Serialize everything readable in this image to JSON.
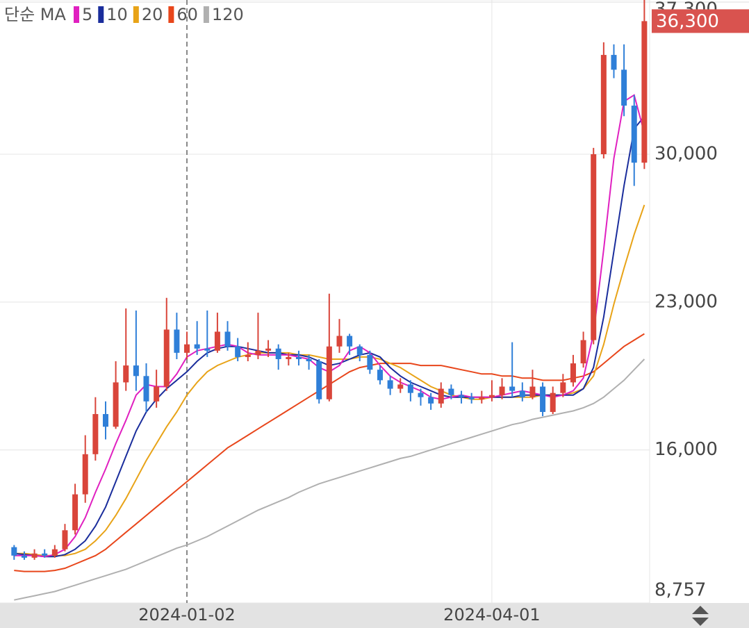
{
  "chart_data": {
    "type": "candlestick",
    "legend_title": "단순 MA",
    "categories": [
      null,
      null,
      null,
      null,
      null,
      null,
      null,
      null,
      null,
      null,
      null,
      null,
      null,
      null,
      null,
      null,
      null,
      "2024-01-02",
      null,
      null,
      null,
      null,
      null,
      null,
      null,
      null,
      null,
      null,
      null,
      null,
      null,
      null,
      null,
      null,
      null,
      null,
      null,
      null,
      null,
      null,
      null,
      null,
      null,
      null,
      null,
      null,
      null,
      "2024-04-01",
      null,
      null,
      null,
      null,
      null,
      null,
      null,
      null,
      null,
      null,
      null,
      null,
      null,
      null,
      null
    ],
    "crosshair": "2024-01-02",
    "up_color": "#d9453a",
    "down_color": "#2f7fd8",
    "candles": [
      [
        11400,
        11500,
        10800,
        11000
      ],
      [
        11000,
        11200,
        10800,
        10900
      ],
      [
        10900,
        11300,
        10800,
        11100
      ],
      [
        11100,
        11300,
        10900,
        11000
      ],
      [
        11000,
        11500,
        10900,
        11300
      ],
      [
        11300,
        12500,
        11200,
        12200
      ],
      [
        12200,
        14400,
        12000,
        13900
      ],
      [
        13900,
        16700,
        13500,
        15800
      ],
      [
        15800,
        18500,
        15500,
        17700
      ],
      [
        17700,
        18300,
        16500,
        17100
      ],
      [
        17100,
        20200,
        17000,
        19200
      ],
      [
        19200,
        22700,
        18800,
        20000
      ],
      [
        20000,
        22600,
        18800,
        19500
      ],
      [
        19500,
        20100,
        17800,
        18300
      ],
      [
        18300,
        19800,
        18000,
        19000
      ],
      [
        19000,
        23200,
        18800,
        21700
      ],
      [
        21700,
        22500,
        20300,
        20600
      ],
      [
        20600,
        21600,
        20300,
        21000
      ],
      [
        21000,
        22100,
        20500,
        20800
      ],
      [
        20800,
        22600,
        20400,
        20700
      ],
      [
        20700,
        22500,
        20600,
        21600
      ],
      [
        21600,
        22100,
        20700,
        20900
      ],
      [
        20900,
        21300,
        20200,
        20400
      ],
      [
        20400,
        21100,
        20200,
        20500
      ],
      [
        20500,
        22500,
        20300,
        20700
      ],
      [
        20700,
        21200,
        20400,
        20800
      ],
      [
        20800,
        21000,
        19800,
        20300
      ],
      [
        20300,
        20600,
        20000,
        20400
      ],
      [
        20400,
        20700,
        20000,
        20300
      ],
      [
        20300,
        20500,
        19800,
        20200
      ],
      [
        20200,
        20300,
        18200,
        18400
      ],
      [
        18400,
        23400,
        18300,
        20900
      ],
      [
        20900,
        22200,
        20600,
        21400
      ],
      [
        21400,
        21500,
        20500,
        20900
      ],
      [
        20900,
        21000,
        20200,
        20500
      ],
      [
        20500,
        20700,
        19600,
        19800
      ],
      [
        19800,
        20000,
        19100,
        19300
      ],
      [
        19300,
        19500,
        18600,
        18900
      ],
      [
        18900,
        19400,
        18700,
        19100
      ],
      [
        19100,
        19300,
        18300,
        18700
      ],
      [
        18700,
        18900,
        18100,
        18500
      ],
      [
        18500,
        18700,
        17900,
        18200
      ],
      [
        18200,
        19200,
        18000,
        18900
      ],
      [
        18900,
        19100,
        18400,
        18600
      ],
      [
        18600,
        18800,
        18200,
        18500
      ],
      [
        18500,
        18700,
        18200,
        18400
      ],
      [
        18400,
        18800,
        18200,
        18500
      ],
      [
        18500,
        19300,
        18300,
        18600
      ],
      [
        18600,
        19400,
        18400,
        19000
      ],
      [
        19000,
        21100,
        18500,
        18800
      ],
      [
        18800,
        19200,
        18300,
        18500
      ],
      [
        18500,
        19800,
        18400,
        19000
      ],
      [
        19000,
        19200,
        17600,
        17800
      ],
      [
        17800,
        19000,
        17700,
        18700
      ],
      [
        18700,
        19600,
        18500,
        19200
      ],
      [
        19200,
        20500,
        19000,
        20100
      ],
      [
        20100,
        21600,
        19900,
        21200
      ],
      [
        21200,
        30300,
        21000,
        30000
      ],
      [
        30000,
        35300,
        29800,
        34700
      ],
      [
        34700,
        35200,
        33600,
        34000
      ],
      [
        34000,
        35200,
        31800,
        32300
      ],
      [
        32300,
        32800,
        28500,
        29600
      ],
      [
        29600,
        37300,
        29300,
        36300
      ]
    ],
    "series": [
      {
        "name": "5",
        "color": "#e020c0",
        "values": [
          11000,
          11000,
          11000,
          10950,
          11050,
          11300,
          11900,
          12800,
          14000,
          15100,
          16300,
          17400,
          18600,
          19100,
          19000,
          19000,
          19600,
          20400,
          20700,
          20800,
          20900,
          21000,
          20900,
          20600,
          20500,
          20500,
          20500,
          20500,
          20400,
          20300,
          19900,
          19700,
          20000,
          20700,
          20900,
          20600,
          20000,
          19500,
          19200,
          19000,
          18800,
          18500,
          18400,
          18500,
          18600,
          18500,
          18500,
          18500,
          18600,
          18700,
          18800,
          18700,
          18600,
          18500,
          18600,
          18800,
          19400,
          21500,
          25500,
          29800,
          32500,
          32800,
          31000
        ]
      },
      {
        "name": "10",
        "color": "#1a2d9c",
        "values": [
          11100,
          11050,
          11000,
          10950,
          10950,
          11050,
          11300,
          11700,
          12400,
          13300,
          14500,
          15700,
          16900,
          17800,
          18400,
          18900,
          19300,
          19700,
          20200,
          20600,
          20800,
          20900,
          20900,
          20800,
          20700,
          20600,
          20600,
          20500,
          20500,
          20400,
          20200,
          20000,
          20100,
          20300,
          20500,
          20600,
          20400,
          19900,
          19500,
          19200,
          19000,
          18800,
          18600,
          18500,
          18500,
          18500,
          18500,
          18500,
          18500,
          18500,
          18600,
          18600,
          18600,
          18600,
          18600,
          18600,
          18900,
          19900,
          22300,
          25400,
          28500,
          31200,
          31800
        ]
      },
      {
        "name": "20",
        "color": "#e8a317",
        "values": [
          11100,
          11100,
          11050,
          11000,
          11000,
          11000,
          11100,
          11300,
          11700,
          12200,
          12900,
          13700,
          14600,
          15500,
          16300,
          17100,
          17800,
          18600,
          19200,
          19700,
          20000,
          20200,
          20400,
          20500,
          20600,
          20600,
          20600,
          20600,
          20500,
          20500,
          20400,
          20300,
          20300,
          20300,
          20400,
          20400,
          20300,
          20100,
          19900,
          19600,
          19300,
          19000,
          18800,
          18600,
          18500,
          18400,
          18400,
          18500,
          18500,
          18500,
          18500,
          18500,
          18600,
          18600,
          18600,
          18700,
          18900,
          19500,
          21000,
          22900,
          24600,
          26200,
          27600
        ]
      },
      {
        "name": "60",
        "color": "#e8461b",
        "values": [
          10300,
          10250,
          10250,
          10250,
          10300,
          10400,
          10600,
          10800,
          11000,
          11300,
          11700,
          12100,
          12500,
          12900,
          13300,
          13700,
          14100,
          14500,
          14900,
          15300,
          15700,
          16100,
          16400,
          16700,
          17000,
          17300,
          17600,
          17900,
          18200,
          18500,
          18800,
          19100,
          19400,
          19700,
          19900,
          20000,
          20100,
          20100,
          20100,
          20100,
          20000,
          20000,
          20000,
          19900,
          19800,
          19700,
          19600,
          19600,
          19500,
          19500,
          19400,
          19400,
          19300,
          19300,
          19300,
          19400,
          19500,
          19700,
          20100,
          20500,
          20900,
          21200,
          21500
        ]
      },
      {
        "name": "120",
        "color": "#b0b0b0",
        "values": [
          8900,
          9000,
          9100,
          9200,
          9300,
          9450,
          9600,
          9750,
          9900,
          10050,
          10200,
          10350,
          10550,
          10750,
          10950,
          11150,
          11350,
          11500,
          11700,
          11900,
          12150,
          12400,
          12650,
          12900,
          13150,
          13350,
          13550,
          13750,
          14000,
          14200,
          14400,
          14550,
          14700,
          14850,
          15000,
          15150,
          15300,
          15450,
          15600,
          15700,
          15850,
          16000,
          16150,
          16300,
          16450,
          16600,
          16750,
          16900,
          17050,
          17200,
          17300,
          17450,
          17550,
          17650,
          17750,
          17850,
          18000,
          18200,
          18500,
          18900,
          19300,
          19800,
          20300
        ]
      }
    ],
    "ylim": [
      8757,
      37300
    ],
    "yticks": [
      {
        "value": 8757,
        "label": "8,757"
      },
      {
        "value": 16000,
        "label": "16,000"
      },
      {
        "value": 23000,
        "label": "23,000"
      },
      {
        "value": 30000,
        "label": "30,000"
      },
      {
        "value": 37300,
        "label": "37,300"
      }
    ],
    "grid": true,
    "price_tag": {
      "value": 36300,
      "label": "36,300",
      "color": "#d9534f"
    }
  }
}
